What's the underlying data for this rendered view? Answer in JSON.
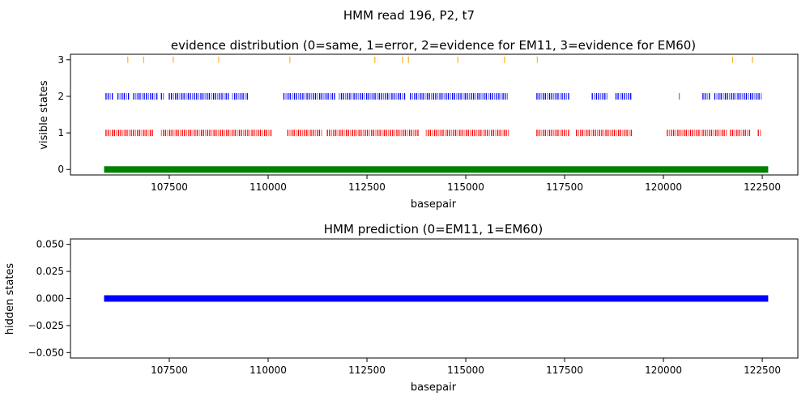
{
  "figure": {
    "suptitle": "HMM read 196, P2, t7"
  },
  "chart_data": [
    {
      "type": "scatter",
      "title": "evidence distribution (0=same, 1=error, 2=evidence for EM11, 3=evidence for EM60)",
      "xlabel": "basepair",
      "ylabel": "visible states",
      "xlim": [
        105000,
        123400
      ],
      "ylim": [
        -0.15,
        3.15
      ],
      "xticks": [
        "107500",
        "110000",
        "112500",
        "115000",
        "117500",
        "120000",
        "122500"
      ],
      "yticks": [
        "0",
        "1",
        "2",
        "3"
      ],
      "grid": false,
      "series": [
        {
          "state": 0,
          "color": "#008000",
          "segments": [
            [
              105850,
              122650
            ]
          ]
        },
        {
          "state": 1,
          "color": "#ff0000",
          "segments": [
            [
              105900,
              107100
            ],
            [
              107300,
              110100
            ],
            [
              110500,
              111400
            ],
            [
              111500,
              113800
            ],
            [
              114000,
              116100
            ],
            [
              116800,
              117600
            ],
            [
              117800,
              119200
            ],
            [
              120100,
              121600
            ],
            [
              121700,
              122200
            ],
            [
              122400,
              122500
            ]
          ]
        },
        {
          "state": 2,
          "color": "#0000ff",
          "segments": [
            [
              105900,
              106100
            ],
            [
              106200,
              106500
            ],
            [
              106600,
              107200
            ],
            [
              107300,
              107400
            ],
            [
              107500,
              109000
            ],
            [
              109100,
              109500
            ],
            [
              110400,
              111700
            ],
            [
              111800,
              113500
            ],
            [
              113600,
              116100
            ],
            [
              116800,
              117600
            ],
            [
              118200,
              118600
            ],
            [
              118800,
              119200
            ],
            [
              120400,
              120450
            ],
            [
              121000,
              121200
            ],
            [
              121300,
              122500
            ]
          ]
        },
        {
          "state": 3,
          "color": "#ffa500",
          "points": [
            106450,
            106850,
            107600,
            108750,
            110550,
            112700,
            113400,
            113550,
            114800,
            115980,
            116810,
            121750,
            122250
          ]
        }
      ]
    },
    {
      "type": "line",
      "title": "HMM prediction (0=EM11, 1=EM60)",
      "xlabel": "basepair",
      "ylabel": "hidden states",
      "xlim": [
        105000,
        123400
      ],
      "ylim": [
        -0.055,
        0.055
      ],
      "xticks": [
        "107500",
        "110000",
        "112500",
        "115000",
        "117500",
        "120000",
        "122500"
      ],
      "yticks": [
        "0.050",
        "0.025",
        "0.000",
        "−0.025",
        "−0.050"
      ],
      "grid": false,
      "series": [
        {
          "state": 0,
          "color": "#0000ff",
          "segments": [
            [
              105850,
              122650
            ]
          ]
        }
      ]
    }
  ]
}
